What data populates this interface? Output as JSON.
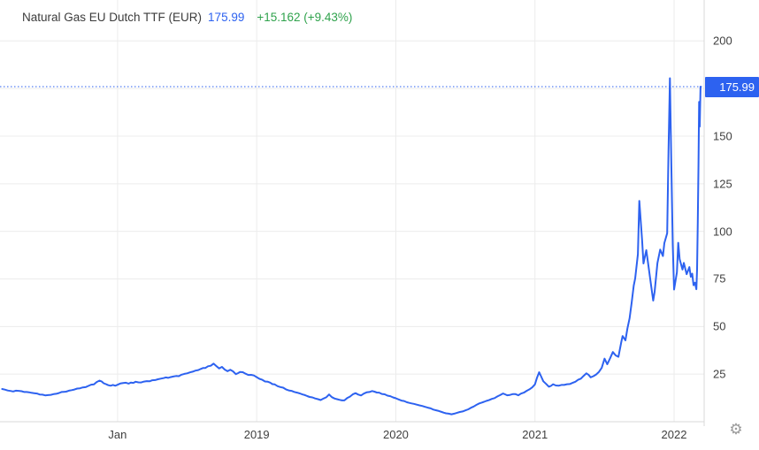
{
  "header": {
    "instrument": "Natural Gas EU Dutch TTF (EUR)",
    "price": "175.99",
    "change": "+15.162 (+9.43%)"
  },
  "price_badge": "175.99",
  "icons": {
    "settings_gear": "⚙"
  },
  "colors": {
    "line": "#2d62f0",
    "current_price_dotted_line": "#2d62f0",
    "price_text": "#2d62f0",
    "change_text": "#2fa24c",
    "badge_bg": "#2d62f0",
    "badge_text": "#ffffff",
    "grid": "#ececec",
    "axis_border": "#d8d8d8",
    "label_text": "#3f3f3f",
    "background": "#ffffff"
  },
  "chart_data": {
    "type": "line",
    "title": "Natural Gas EU Dutch TTF (EUR)",
    "last_price": 175.99,
    "change_abs": 15.162,
    "change_pct": 9.43,
    "grid": true,
    "legend": "none",
    "current_price_line": 175.99,
    "y_axis": {
      "range": [
        0,
        221.5
      ],
      "gridline_values": [
        25,
        50,
        75,
        100,
        125,
        150,
        175,
        200
      ],
      "labeled_ticks": [
        "25",
        "50",
        "75",
        "100",
        "125",
        "150",
        "200"
      ]
    },
    "x_axis": {
      "range_decimal_years": [
        2017.155,
        2022.216
      ],
      "ticks": [
        {
          "label": "Jan",
          "t": 2018.0
        },
        {
          "label": "2019",
          "t": 2019.0
        },
        {
          "label": "2020",
          "t": 2020.0
        },
        {
          "label": "2021",
          "t": 2021.0
        },
        {
          "label": "2022",
          "t": 2022.0
        }
      ]
    },
    "series": [
      {
        "name": "Natural Gas EU Dutch TTF (EUR)",
        "points": [
          [
            2017.17,
            17.2
          ],
          [
            2017.21,
            16.4
          ],
          [
            2017.25,
            15.9
          ],
          [
            2017.29,
            16.2
          ],
          [
            2017.33,
            15.6
          ],
          [
            2017.38,
            15.2
          ],
          [
            2017.42,
            14.8
          ],
          [
            2017.46,
            14.2
          ],
          [
            2017.5,
            14.0
          ],
          [
            2017.54,
            14.5
          ],
          [
            2017.58,
            15.1
          ],
          [
            2017.63,
            15.8
          ],
          [
            2017.67,
            16.6
          ],
          [
            2017.71,
            17.4
          ],
          [
            2017.75,
            18.0
          ],
          [
            2017.79,
            18.8
          ],
          [
            2017.83,
            19.6
          ],
          [
            2017.87,
            21.6
          ],
          [
            2017.9,
            20.2
          ],
          [
            2017.95,
            18.9
          ],
          [
            2018.0,
            19.4
          ],
          [
            2018.04,
            20.3
          ],
          [
            2018.08,
            20.0
          ],
          [
            2018.13,
            21.0
          ],
          [
            2018.17,
            20.6
          ],
          [
            2018.21,
            21.3
          ],
          [
            2018.25,
            21.8
          ],
          [
            2018.29,
            22.3
          ],
          [
            2018.33,
            22.9
          ],
          [
            2018.38,
            23.4
          ],
          [
            2018.42,
            24.0
          ],
          [
            2018.46,
            24.7
          ],
          [
            2018.5,
            25.4
          ],
          [
            2018.54,
            26.3
          ],
          [
            2018.58,
            27.1
          ],
          [
            2018.63,
            28.2
          ],
          [
            2018.67,
            29.4
          ],
          [
            2018.69,
            30.5
          ],
          [
            2018.71,
            29.2
          ],
          [
            2018.73,
            28.0
          ],
          [
            2018.75,
            28.8
          ],
          [
            2018.79,
            26.5
          ],
          [
            2018.81,
            27.3
          ],
          [
            2018.85,
            25.0
          ],
          [
            2018.88,
            26.1
          ],
          [
            2018.92,
            25.2
          ],
          [
            2018.96,
            24.6
          ],
          [
            2019.0,
            23.4
          ],
          [
            2019.04,
            22.0
          ],
          [
            2019.08,
            21.0
          ],
          [
            2019.13,
            19.6
          ],
          [
            2019.17,
            18.2
          ],
          [
            2019.21,
            17.0
          ],
          [
            2019.25,
            16.2
          ],
          [
            2019.29,
            15.3
          ],
          [
            2019.33,
            14.3
          ],
          [
            2019.38,
            13.0
          ],
          [
            2019.42,
            12.2
          ],
          [
            2019.46,
            11.4
          ],
          [
            2019.5,
            12.8
          ],
          [
            2019.52,
            14.3
          ],
          [
            2019.54,
            12.9
          ],
          [
            2019.58,
            11.8
          ],
          [
            2019.63,
            11.2
          ],
          [
            2019.67,
            13.2
          ],
          [
            2019.71,
            15.0
          ],
          [
            2019.75,
            13.8
          ],
          [
            2019.79,
            15.4
          ],
          [
            2019.83,
            16.1
          ],
          [
            2019.88,
            15.3
          ],
          [
            2019.92,
            14.4
          ],
          [
            2019.96,
            13.4
          ],
          [
            2020.0,
            12.3
          ],
          [
            2020.04,
            11.1
          ],
          [
            2020.08,
            10.2
          ],
          [
            2020.13,
            9.4
          ],
          [
            2020.17,
            8.6
          ],
          [
            2020.21,
            7.8
          ],
          [
            2020.25,
            7.0
          ],
          [
            2020.29,
            6.0
          ],
          [
            2020.33,
            5.1
          ],
          [
            2020.36,
            4.4
          ],
          [
            2020.4,
            3.9
          ],
          [
            2020.44,
            4.7
          ],
          [
            2020.48,
            5.4
          ],
          [
            2020.52,
            6.5
          ],
          [
            2020.56,
            8.0
          ],
          [
            2020.6,
            9.6
          ],
          [
            2020.65,
            10.9
          ],
          [
            2020.69,
            12.0
          ],
          [
            2020.73,
            13.3
          ],
          [
            2020.77,
            14.8
          ],
          [
            2020.8,
            13.9
          ],
          [
            2020.84,
            14.5
          ],
          [
            2020.88,
            13.9
          ],
          [
            2020.92,
            15.3
          ],
          [
            2020.96,
            17.0
          ],
          [
            2021.0,
            19.6
          ],
          [
            2021.03,
            26.0
          ],
          [
            2021.06,
            21.2
          ],
          [
            2021.1,
            18.4
          ],
          [
            2021.13,
            19.7
          ],
          [
            2021.17,
            18.9
          ],
          [
            2021.21,
            19.3
          ],
          [
            2021.25,
            19.8
          ],
          [
            2021.29,
            21.0
          ],
          [
            2021.33,
            22.6
          ],
          [
            2021.37,
            25.4
          ],
          [
            2021.4,
            23.3
          ],
          [
            2021.44,
            24.8
          ],
          [
            2021.48,
            28.3
          ],
          [
            2021.5,
            33.1
          ],
          [
            2021.52,
            30.2
          ],
          [
            2021.56,
            36.6
          ],
          [
            2021.6,
            34.1
          ],
          [
            2021.62,
            41.8
          ],
          [
            2021.63,
            45.0
          ],
          [
            2021.65,
            42.7
          ],
          [
            2021.68,
            54.3
          ],
          [
            2021.71,
            71.5
          ],
          [
            2021.72,
            75.2
          ],
          [
            2021.74,
            88.0
          ],
          [
            2021.75,
            116.0
          ],
          [
            2021.77,
            95.0
          ],
          [
            2021.78,
            83.1
          ],
          [
            2021.8,
            90.1
          ],
          [
            2021.83,
            74.0
          ],
          [
            2021.85,
            63.6
          ],
          [
            2021.86,
            68.2
          ],
          [
            2021.88,
            83.4
          ],
          [
            2021.9,
            90.4
          ],
          [
            2021.92,
            87.0
          ],
          [
            2021.93,
            93.8
          ],
          [
            2021.95,
            99.0
          ],
          [
            2021.96,
            142.0
          ],
          [
            2021.97,
            180.4
          ],
          [
            2021.98,
            135.0
          ],
          [
            2021.99,
            93.0
          ],
          [
            2022.0,
            69.4
          ],
          [
            2022.02,
            78.5
          ],
          [
            2022.03,
            94.0
          ],
          [
            2022.04,
            85.4
          ],
          [
            2022.06,
            79.9
          ],
          [
            2022.07,
            83.4
          ],
          [
            2022.09,
            77.5
          ],
          [
            2022.11,
            81.2
          ],
          [
            2022.12,
            76.1
          ],
          [
            2022.13,
            77.8
          ],
          [
            2022.14,
            71.7
          ],
          [
            2022.15,
            73.0
          ],
          [
            2022.16,
            69.6
          ],
          [
            2022.165,
            80.0
          ],
          [
            2022.17,
            105.0
          ],
          [
            2022.175,
            135.0
          ],
          [
            2022.18,
            168.0
          ],
          [
            2022.184,
            155.0
          ],
          [
            2022.19,
            175.99
          ]
        ]
      }
    ]
  }
}
